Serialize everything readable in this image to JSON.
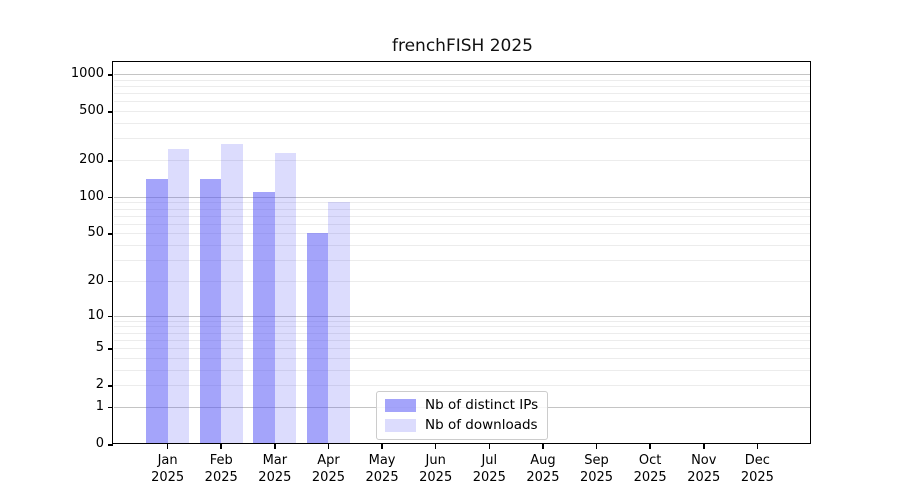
{
  "title": "frenchFISH 2025",
  "chart_data": {
    "type": "bar",
    "title": "frenchFISH 2025",
    "categories": [
      "Jan",
      "Feb",
      "Mar",
      "Apr",
      "May",
      "Jun",
      "Jul",
      "Aug",
      "Sep",
      "Oct",
      "Nov",
      "Dec"
    ],
    "year_label": "2025",
    "series": [
      {
        "name": "Nb of distinct IPs",
        "color": "rgba(80,80,245,0.52)",
        "values": [
          140,
          140,
          110,
          50,
          null,
          null,
          null,
          null,
          null,
          null,
          null,
          null
        ]
      },
      {
        "name": "Nb of downloads",
        "color": "rgba(80,80,245,0.20)",
        "values": [
          245,
          270,
          230,
          90,
          null,
          null,
          null,
          null,
          null,
          null,
          null,
          null
        ]
      }
    ],
    "xlabel": "",
    "ylabel": "",
    "y_scale": "log1p",
    "y_ticks": [
      1000,
      500,
      200,
      100,
      50,
      20,
      10,
      5,
      2,
      1,
      0
    ],
    "ylim": [
      0,
      1230
    ],
    "grid": true,
    "legend_position": "lower-center",
    "colors": {
      "axis": "#000000",
      "grid_major": "#c4c4c4",
      "grid_minor": "#ececec",
      "background": "#ffffff"
    }
  }
}
